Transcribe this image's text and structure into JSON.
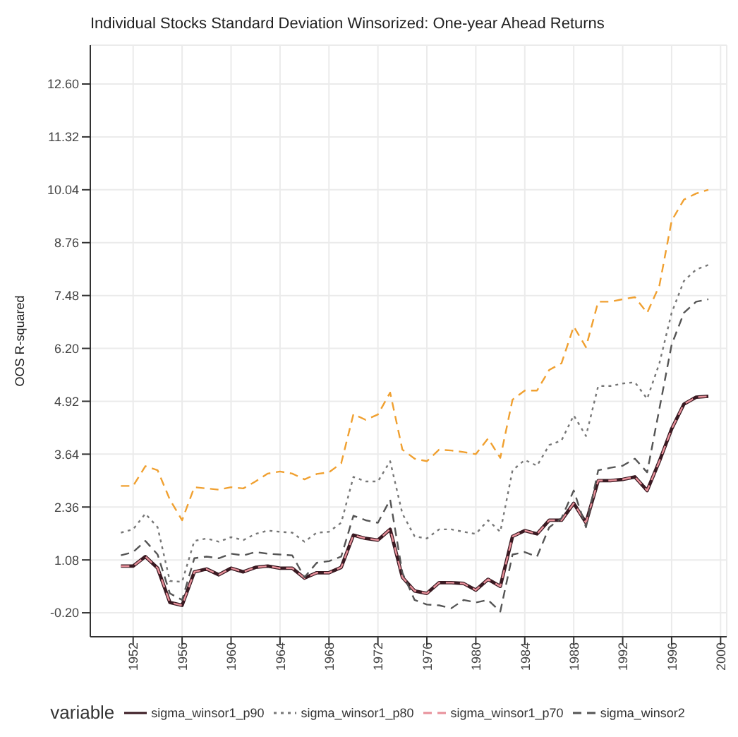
{
  "chart_data": {
    "type": "line",
    "title": "Individual Stocks Standard Deviation Winsorized: One-year Ahead Returns",
    "ylabel": "OOS R-squared",
    "legend_title": "variable",
    "legend": "bottom",
    "grid": true,
    "x": [
      1951,
      1952,
      1953,
      1954,
      1955,
      1956,
      1957,
      1958,
      1959,
      1960,
      1961,
      1962,
      1963,
      1964,
      1965,
      1966,
      1967,
      1968,
      1969,
      1970,
      1971,
      1972,
      1973,
      1974,
      1975,
      1976,
      1977,
      1978,
      1979,
      1980,
      1981,
      1982,
      1983,
      1984,
      1985,
      1986,
      1987,
      1988,
      1989,
      1990,
      1991,
      1992,
      1993,
      1994,
      1995,
      1996,
      1997,
      1998,
      1999
    ],
    "xlim": [
      1948.5,
      2000.5
    ],
    "xticks": [
      1952,
      1956,
      1960,
      1964,
      1968,
      1972,
      1976,
      1980,
      1984,
      1988,
      1992,
      1996,
      2000
    ],
    "ylim": [
      -0.78,
      13.54
    ],
    "yticks": [
      {
        "value": -0.2,
        "label": "-0.20"
      },
      1.08,
      2.36,
      3.64,
      4.92,
      {
        "value": 6.2,
        "label": "6.20"
      },
      7.48,
      8.76,
      10.04,
      11.32,
      {
        "value": 12.6,
        "label": "12.60"
      }
    ],
    "series": [
      {
        "color": "#f0a030",
        "line_style": "dashed",
        "values": [
          2.87,
          2.87,
          3.35,
          3.25,
          2.54,
          2.04,
          2.84,
          2.81,
          2.78,
          2.84,
          2.81,
          2.98,
          3.17,
          3.22,
          3.17,
          3.03,
          3.16,
          3.2,
          3.42,
          4.61,
          4.47,
          4.6,
          5.13,
          3.75,
          3.53,
          3.47,
          3.75,
          3.73,
          3.69,
          3.64,
          4.02,
          3.55,
          4.96,
          5.18,
          5.18,
          5.68,
          5.84,
          6.73,
          6.23,
          7.33,
          7.33,
          7.39,
          7.44,
          7.06,
          7.72,
          9.29,
          9.8,
          9.95,
          10.04
        ]
      },
      {
        "name": "sigma_winsor1_p90",
        "color": "#3a1a22",
        "line_style": "solid",
        "values": [
          0.93,
          0.93,
          1.16,
          0.88,
          0.05,
          -0.02,
          0.79,
          0.86,
          0.72,
          0.88,
          0.79,
          0.9,
          0.93,
          0.88,
          0.88,
          0.64,
          0.77,
          0.77,
          0.9,
          1.68,
          1.6,
          1.56,
          1.82,
          0.66,
          0.33,
          0.27,
          0.53,
          0.53,
          0.51,
          0.35,
          0.61,
          0.44,
          1.65,
          1.79,
          1.71,
          2.04,
          2.04,
          2.45,
          1.98,
          3.0,
          3.0,
          3.03,
          3.09,
          2.76,
          3.47,
          4.25,
          4.85,
          5.02,
          5.04
        ]
      },
      {
        "name": "sigma_winsor1_p80",
        "color": "#777777",
        "line_style": "dotted",
        "values": [
          1.74,
          1.82,
          2.2,
          1.87,
          0.57,
          0.55,
          1.54,
          1.6,
          1.52,
          1.63,
          1.56,
          1.71,
          1.79,
          1.76,
          1.74,
          1.52,
          1.74,
          1.76,
          1.98,
          3.09,
          2.98,
          2.98,
          3.47,
          2.2,
          1.65,
          1.6,
          1.82,
          1.82,
          1.76,
          1.71,
          2.04,
          1.76,
          3.25,
          3.5,
          3.36,
          3.86,
          3.97,
          4.58,
          4.08,
          5.29,
          5.29,
          5.35,
          5.38,
          4.98,
          5.84,
          7.06,
          7.83,
          8.11,
          8.22
        ]
      },
      {
        "name": "sigma_winsor1_p70",
        "color": "#e8909a",
        "line_style": "dashed",
        "values": [
          0.93,
          0.93,
          1.16,
          0.88,
          0.05,
          -0.02,
          0.79,
          0.86,
          0.72,
          0.88,
          0.79,
          0.9,
          0.93,
          0.88,
          0.88,
          0.64,
          0.77,
          0.77,
          0.9,
          1.68,
          1.6,
          1.56,
          1.82,
          0.66,
          0.33,
          0.27,
          0.53,
          0.53,
          0.51,
          0.35,
          0.61,
          0.44,
          1.65,
          1.79,
          1.71,
          2.04,
          2.04,
          2.45,
          1.98,
          3.0,
          3.0,
          3.03,
          3.09,
          2.76,
          3.47,
          4.25,
          4.85,
          5.02,
          5.04
        ]
      },
      {
        "name": "sigma_winsor2",
        "color": "#555555",
        "line_style": "dashed",
        "values": [
          1.19,
          1.27,
          1.54,
          1.21,
          0.27,
          0.11,
          1.12,
          1.16,
          1.12,
          1.23,
          1.19,
          1.27,
          1.23,
          1.21,
          1.19,
          0.66,
          1.01,
          1.05,
          1.16,
          2.15,
          2.04,
          1.98,
          2.54,
          0.77,
          0.11,
          0.0,
          -0.02,
          -0.09,
          0.11,
          0.05,
          0.11,
          -0.17,
          1.21,
          1.27,
          1.16,
          1.87,
          2.09,
          2.76,
          1.87,
          3.25,
          3.31,
          3.36,
          3.53,
          3.2,
          4.74,
          6.29,
          7.06,
          7.33,
          7.39
        ]
      }
    ]
  }
}
